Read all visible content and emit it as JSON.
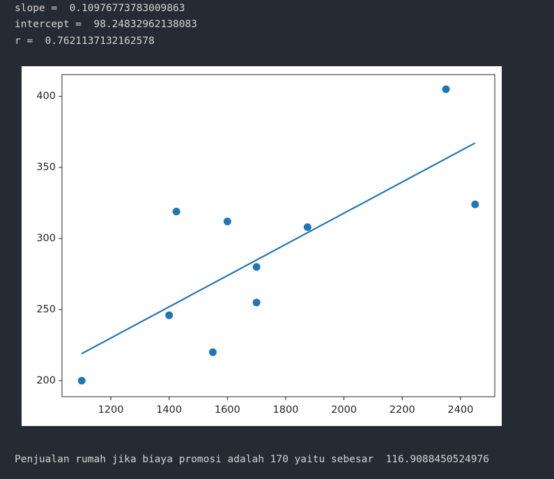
{
  "outputs": [
    "slope =  0.10976773783009863",
    "intercept =  98.24832962138083",
    "r =  0.7621137132162578"
  ],
  "chart_data": {
    "type": "scatter",
    "series": [
      {
        "type": "scatter",
        "color": "#1f77b4",
        "x": [
          1100,
          1400,
          1425,
          1550,
          1600,
          1700,
          1700,
          1875,
          2350,
          2450
        ],
        "values": [
          200,
          246,
          319,
          220,
          312,
          280,
          255,
          308,
          405,
          324
        ]
      },
      {
        "type": "line",
        "color": "#1f77b4",
        "x": [
          1100,
          2450
        ],
        "values": [
          219.0,
          367.2
        ]
      }
    ],
    "xlim": [
      1032.5,
      2517.5
    ],
    "xticks": [
      1200,
      1400,
      1600,
      1800,
      2000,
      2200,
      2400
    ],
    "ylim": [
      188.7,
      415.3
    ],
    "yticks": [
      200,
      250,
      300,
      350,
      400
    ],
    "grid": false
  },
  "footer": "Penjualan rumah jika biaya promosi adalah 170 yaitu sebesar  116.9088450524976"
}
